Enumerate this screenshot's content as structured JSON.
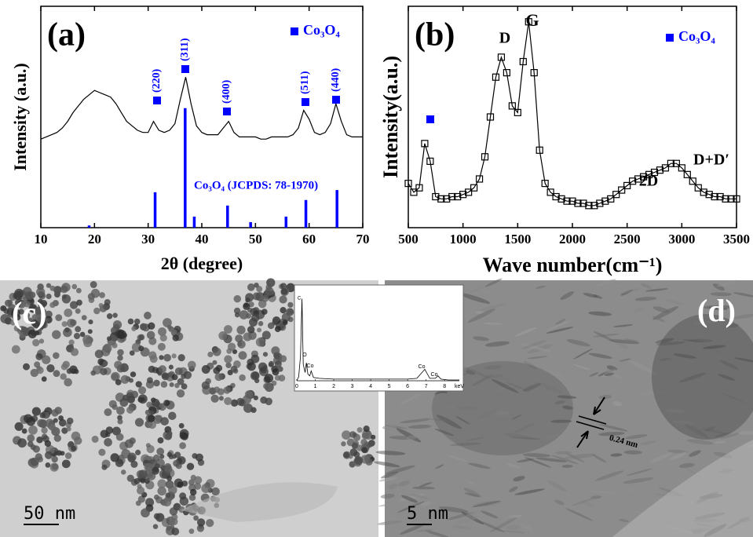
{
  "chart_data": [
    {
      "type": "line",
      "panel_label": "(a)",
      "xlabel": "2θ (degree)",
      "ylabel": "Intensity (a.u.)",
      "xlim": [
        10,
        70
      ],
      "xticks": [
        10,
        20,
        30,
        40,
        50,
        60,
        70
      ],
      "ylim": [
        0,
        100
      ],
      "legend": {
        "label": "Co₃O₄",
        "color": "#0000ff"
      },
      "peak_labels": [
        "(220)",
        "(311)",
        "(400)",
        "(511)",
        "(440)"
      ],
      "series": [
        {
          "color": "#000000",
          "x": [
            10,
            11,
            12,
            13,
            14,
            15,
            16,
            17,
            18,
            19,
            20,
            21,
            22,
            23,
            24,
            25,
            26,
            27,
            28,
            29,
            30,
            31,
            32,
            33,
            34,
            35,
            36,
            37,
            38,
            39,
            40,
            41,
            42,
            43,
            44,
            45,
            46,
            47,
            48,
            49,
            50,
            51,
            52,
            53,
            54,
            55,
            56,
            57,
            58,
            59,
            60,
            61,
            62,
            63,
            64,
            65,
            66,
            67,
            68,
            69,
            70
          ],
          "values": [
            40,
            41,
            42,
            43,
            45,
            48,
            52,
            55,
            58,
            60,
            62,
            61,
            60,
            59,
            56,
            52,
            48,
            46,
            44,
            43,
            43,
            48,
            44,
            43,
            44,
            47,
            58,
            68,
            56,
            46,
            43,
            42,
            42,
            42,
            45,
            48,
            43,
            41,
            41,
            41,
            41,
            40,
            40,
            41,
            41,
            41,
            41,
            42,
            45,
            53,
            49,
            43,
            42,
            43,
            47,
            56,
            48,
            42,
            41,
            41,
            41
          ]
        }
      ],
      "reference": {
        "name": "Co₃O₄ (JCPDS: 78-1970)",
        "color": "#0000ff",
        "x": [
          19.0,
          31.3,
          36.9,
          38.6,
          44.8,
          49.1,
          55.7,
          59.4,
          65.2
        ],
        "values": [
          1,
          16,
          54,
          5,
          10,
          2.5,
          5,
          12.5,
          17
        ]
      }
    },
    {
      "type": "line",
      "panel_label": "(b)",
      "xlabel": "Wave number(cm⁻¹)",
      "ylabel": "Intensity(a.u.)",
      "xlim": [
        500,
        3500
      ],
      "xticks": [
        500,
        1000,
        1500,
        2000,
        2500,
        3000,
        3500
      ],
      "ylim": [
        0,
        100
      ],
      "marker": "square",
      "legend": {
        "label": "Co₃O₄",
        "color": "#0000ff"
      },
      "peak_labels": [
        "D",
        "G",
        "2D",
        "D+D′"
      ],
      "series": [
        {
          "color": "#000000",
          "x": [
            500,
            550,
            600,
            650,
            700,
            750,
            800,
            850,
            900,
            950,
            1000,
            1050,
            1100,
            1150,
            1200,
            1250,
            1300,
            1350,
            1400,
            1450,
            1500,
            1550,
            1600,
            1650,
            1700,
            1750,
            1800,
            1850,
            1900,
            1950,
            2000,
            2050,
            2100,
            2150,
            2200,
            2250,
            2300,
            2350,
            2400,
            2450,
            2500,
            2550,
            2600,
            2650,
            2700,
            2750,
            2800,
            2850,
            2900,
            2950,
            3000,
            3050,
            3100,
            3150,
            3200,
            3250,
            3300,
            3350,
            3400,
            3450,
            3500
          ],
          "values": [
            20,
            16,
            18,
            38,
            30,
            14,
            13,
            13,
            14,
            14,
            15,
            16,
            18,
            22,
            32,
            50,
            68,
            77,
            70,
            55,
            52,
            75,
            93,
            70,
            35,
            20,
            16,
            14,
            13,
            12,
            12,
            11,
            11,
            10,
            10,
            11,
            12,
            13,
            15,
            17,
            19,
            21,
            22,
            23,
            24,
            25,
            26,
            27,
            29,
            29,
            27,
            24,
            21,
            18,
            16,
            15,
            14,
            14,
            13,
            13,
            13
          ]
        }
      ]
    },
    {
      "type": "line",
      "xlabel": "keV",
      "xlim": [
        0,
        8.8
      ],
      "xticks": [
        0,
        1,
        2,
        3,
        4,
        5,
        6,
        7,
        8
      ],
      "ylim": [
        0,
        110
      ],
      "peak_labels": [
        "C",
        "O",
        "Co",
        "Co",
        "Co"
      ],
      "series": [
        {
          "color": "#000000",
          "x": [
            0,
            0.1,
            0.2,
            0.28,
            0.35,
            0.45,
            0.52,
            0.6,
            0.7,
            0.78,
            0.9,
            1.2,
            2,
            3,
            4,
            5,
            6,
            6.5,
            6.93,
            7.2,
            7.5,
            7.65,
            7.8,
            8.2,
            8.8
          ],
          "values": [
            0,
            5,
            30,
            100,
            20,
            10,
            22,
            8,
            6,
            12,
            4,
            3,
            2,
            2,
            2,
            2,
            2,
            3,
            14,
            3,
            3,
            6,
            2,
            1,
            1
          ]
        }
      ]
    }
  ],
  "images": [
    {
      "label": "(c)",
      "scale_bar": "50 nm"
    },
    {
      "label": "(d)",
      "scale_bar": "5 nm",
      "annotation": "0.24 nm"
    }
  ]
}
